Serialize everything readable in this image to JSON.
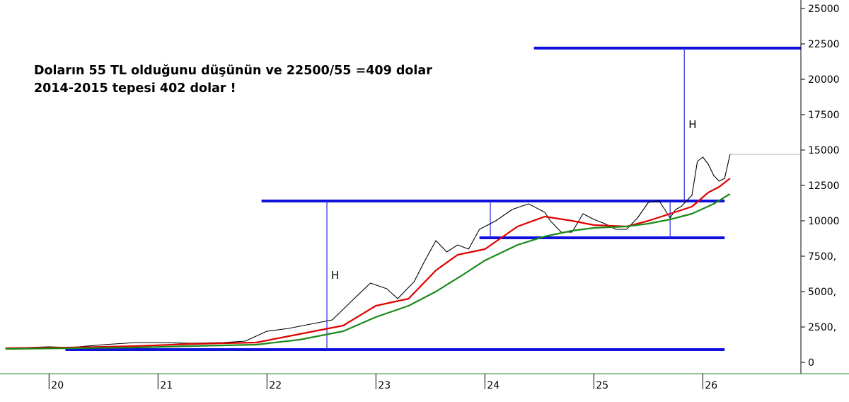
{
  "annotation": {
    "line1": "Doların 55 TL olduğunu düşünün ve 22500/55 =409 dolar",
    "line2": "2014-2015 tepesi 402 dolar !"
  },
  "chart_data": {
    "type": "line",
    "title": "",
    "xlabel": "",
    "ylabel": "",
    "x_ticks": [
      "20",
      "21",
      "22",
      "23",
      "24",
      "25",
      "26"
    ],
    "y_ticks": [
      "25000",
      "22500",
      "20000",
      "17500",
      "15000",
      "12500",
      "10000",
      "7500,",
      "5000,",
      "2500,",
      "0"
    ],
    "ylim": [
      0,
      25000
    ],
    "xlim": [
      2019.55,
      2026.9
    ],
    "last_price": 14700,
    "series": [
      {
        "color": "#000000",
        "x": [
          2019.6,
          2020.0,
          2020.2,
          2020.5,
          2020.8,
          2021.0,
          2021.3,
          2021.6,
          2021.8,
          2022.0,
          2022.2,
          2022.4,
          2022.6,
          2022.8,
          2022.95,
          2023.1,
          2023.2,
          2023.35,
          2023.45,
          2023.55,
          2023.65,
          2023.75,
          2023.85,
          2023.95,
          2024.1,
          2024.25,
          2024.4,
          2024.55,
          2024.6,
          2024.7,
          2024.8,
          2024.9,
          2025.0,
          2025.1,
          2025.2,
          2025.3,
          2025.4,
          2025.5,
          2025.6,
          2025.7,
          2025.75,
          2025.8,
          2025.9,
          2025.95,
          2026.0,
          2026.05,
          2026.1,
          2026.15,
          2026.2,
          2026.25
        ],
        "values": [
          1000,
          1100,
          1050,
          1250,
          1400,
          1400,
          1350,
          1400,
          1500,
          2200,
          2400,
          2700,
          3000,
          4500,
          5600,
          5200,
          4500,
          5700,
          7200,
          8600,
          7800,
          8300,
          8000,
          9400,
          10000,
          10800,
          11200,
          10600,
          10000,
          9200,
          9200,
          10500,
          10100,
          9800,
          9400,
          9400,
          10200,
          11300,
          11400,
          10200,
          10800,
          11000,
          11800,
          14200,
          14500,
          14000,
          13200,
          12800,
          13000,
          14700
        ]
      },
      {
        "color": "#e00000",
        "x": [
          2019.6,
          2020.2,
          2020.8,
          2021.3,
          2021.9,
          2022.3,
          2022.7,
          2023.0,
          2023.3,
          2023.55,
          2023.75,
          2024.0,
          2024.3,
          2024.55,
          2024.8,
          2025.0,
          2025.3,
          2025.5,
          2025.7,
          2025.9,
          2026.05,
          2026.15,
          2026.25
        ],
        "values": [
          1000,
          1050,
          1150,
          1300,
          1400,
          2000,
          2600,
          4000,
          4500,
          6500,
          7600,
          8000,
          9600,
          10300,
          10000,
          9700,
          9600,
          10000,
          10500,
          11000,
          12000,
          12400,
          13000
        ]
      },
      {
        "color": "#1a8a1a",
        "x": [
          2019.6,
          2020.2,
          2020.8,
          2021.3,
          2021.9,
          2022.3,
          2022.7,
          2023.0,
          2023.3,
          2023.55,
          2023.8,
          2024.0,
          2024.3,
          2024.55,
          2024.8,
          2025.0,
          2025.3,
          2025.5,
          2025.7,
          2025.9,
          2026.1,
          2026.25
        ],
        "values": [
          950,
          1000,
          1050,
          1150,
          1250,
          1600,
          2200,
          3200,
          4000,
          5000,
          6200,
          7200,
          8300,
          8900,
          9300,
          9500,
          9600,
          9800,
          10100,
          10500,
          11200,
          11900
        ]
      }
    ],
    "levels": [
      {
        "value": 22200,
        "x_start": 2024.45,
        "x_end": 2026.9,
        "color": "#1010dd"
      },
      {
        "value": 11400,
        "x_start": 2021.95,
        "x_end": 2026.2,
        "color": "#1010dd"
      },
      {
        "value": 8800,
        "x_start": 2023.95,
        "x_end": 2026.2,
        "color": "#1010dd"
      },
      {
        "value": 900,
        "x_start": 2020.15,
        "x_end": 2026.2,
        "color": "#1010dd"
      }
    ],
    "h_measures": [
      {
        "label": "H",
        "x": 2022.55,
        "from": 900,
        "to": 11400
      },
      {
        "label": "H",
        "x": 2025.83,
        "from": 11400,
        "to": 22200
      }
    ],
    "range_markers": [
      {
        "x": 2024.05,
        "from": 8800,
        "to": 11400
      },
      {
        "x": 2025.7,
        "from": 8800,
        "to": 11400
      }
    ],
    "colors": {
      "axis": "#000000",
      "baseline": "#2e8b2e",
      "price_line": "#b0b0b0"
    }
  }
}
